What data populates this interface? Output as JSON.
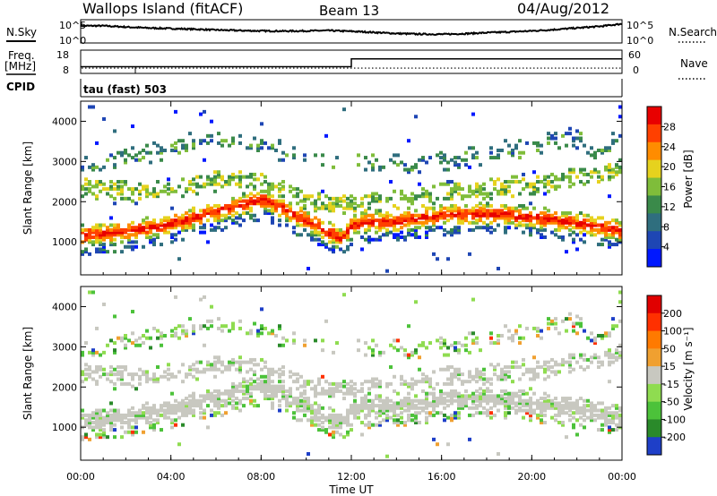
{
  "header": {
    "station": "Wallops Island (fitACF)",
    "beam": "Beam 13",
    "date": "04/Aug/2012"
  },
  "panel_labels": {
    "nsky": "N.Sky",
    "nsearch": "N.Search",
    "freq": "Freq.",
    "freq_unit": "[MHz]",
    "nave": "Nave",
    "cpid": "CPID",
    "cpid_value": "tau (fast) 503"
  },
  "chart_data": [
    {
      "type": "line",
      "name": "noise",
      "ylabel_left": "N.Sky",
      "ylabel_right": "N.Search",
      "yticks_left": [
        "10^5",
        "10^0"
      ],
      "yticks_right": [
        "10^5",
        "10^0"
      ],
      "x": [
        0,
        1,
        2,
        3,
        4,
        5,
        6,
        7,
        8,
        9,
        10,
        11,
        12,
        13,
        14,
        15,
        16,
        17,
        18,
        19,
        20,
        21,
        22,
        23,
        24
      ],
      "y": [
        3.9,
        3.9,
        3.6,
        3.35,
        3.2,
        3.05,
        2.85,
        2.7,
        2.6,
        2.55,
        2.6,
        2.7,
        2.5,
        2.25,
        1.95,
        1.8,
        1.75,
        1.9,
        2.15,
        2.35,
        2.6,
        2.95,
        3.35,
        3.75,
        4.4
      ]
    },
    {
      "type": "line",
      "name": "frequency",
      "ylabel_left": "Freq. [MHz]",
      "ylabel_right": "Nave",
      "yticks_left": [
        "18",
        "8"
      ],
      "yticks_right": [
        "60",
        "0"
      ],
      "ylim_left": [
        8,
        18
      ],
      "freq_x": [
        0,
        12,
        12,
        24
      ],
      "freq_y": [
        10.5,
        10.5,
        14.5,
        14.5
      ],
      "nave_level": 0.18
    },
    {
      "type": "heatmap",
      "name": "power",
      "ylabel": "Slant Range [km]",
      "colorbar_label": "Power [dB]",
      "colorbar_ticks": [
        "28",
        "24",
        "20",
        "16",
        "12",
        "8",
        "4"
      ],
      "yticks": [
        "4000",
        "3000",
        "2000",
        "1000"
      ],
      "ylim": [
        180,
        4500
      ],
      "xlim": [
        0,
        24
      ]
    },
    {
      "type": "heatmap",
      "name": "velocity",
      "ylabel": "Slant Range [km]",
      "colorbar_label": "Velocity [m s⁻¹]",
      "colorbar_ticks": [
        "200",
        "100",
        "50",
        "15",
        "-15",
        "-50",
        "-100",
        "-200"
      ],
      "yticks": [
        "4000",
        "3000",
        "2000",
        "1000"
      ],
      "ylim": [
        180,
        4500
      ],
      "xlim": [
        0,
        24
      ],
      "xlabel": "Time UT",
      "xticks": [
        "00:00",
        "04:00",
        "08:00",
        "12:00",
        "16:00",
        "20:00",
        "00:00"
      ]
    }
  ],
  "colors": {
    "power_scale": [
      "#0018ff",
      "#1e46b4",
      "#2f6e7e",
      "#3a8a4a",
      "#7fbd3a",
      "#e6d21e",
      "#ff8c00",
      "#ff4000",
      "#e80000"
    ],
    "velocity_scale": [
      "#1e3fc8",
      "#2a8a2a",
      "#4cc23a",
      "#8fdc50",
      "#c8c8c0",
      "#f0a030",
      "#ff7a00",
      "#ff3000",
      "#e00000"
    ]
  }
}
